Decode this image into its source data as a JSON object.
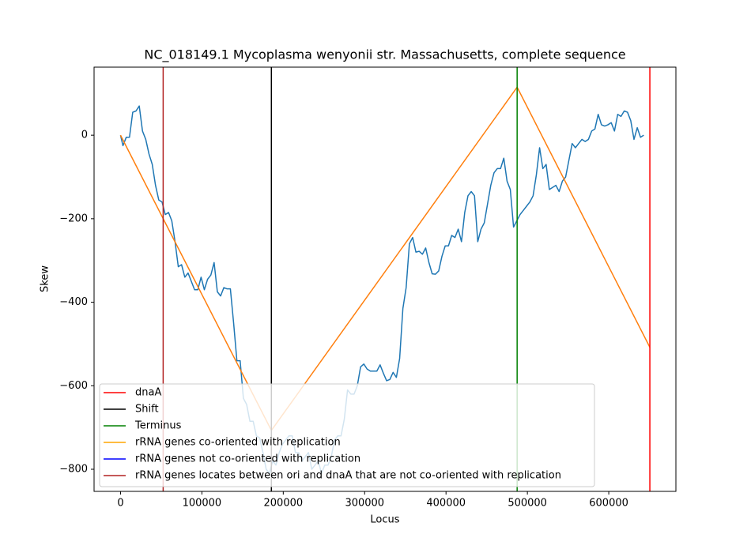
{
  "chart_data": {
    "type": "line",
    "title": "NC_018149.1 Mycoplasma wenyonii str. Massachusetts, complete sequence",
    "x_label": "Locus",
    "y_label": "Skew",
    "xlim": [
      -32500,
      682500
    ],
    "ylim": [
      -853,
      163
    ],
    "xticks": [
      0,
      100000,
      200000,
      300000,
      400000,
      500000,
      600000
    ],
    "yticks": [
      {
        "value": -800,
        "label": "−800"
      },
      {
        "value": -600,
        "label": "−600"
      },
      {
        "value": -400,
        "label": "−400"
      },
      {
        "value": -200,
        "label": "−200"
      },
      0
    ],
    "legend_position": "lower left",
    "series": [
      {
        "color": "#1f77b4",
        "x": [
          0,
          3000,
          7000,
          11000,
          15000,
          19000,
          23000,
          27000,
          31000,
          35000,
          39000,
          43000,
          47000,
          51000,
          55000,
          59000,
          63000,
          67000,
          71000,
          75000,
          79000,
          83000,
          87000,
          91000,
          95000,
          99000,
          103000,
          107000,
          111000,
          115000,
          119000,
          123000,
          127000,
          131000,
          135000,
          139000,
          143000,
          147000,
          151000,
          155000,
          159000,
          163000,
          167000,
          171000,
          175000,
          179000,
          183000,
          187000,
          191000,
          195000,
          199000,
          203000,
          207000,
          211000,
          215000,
          219000,
          223000,
          227000,
          231000,
          235000,
          239000,
          243000,
          247000,
          251000,
          255000,
          259000,
          263000,
          267000,
          271000,
          275000,
          279000,
          283000,
          287000,
          291000,
          295000,
          299000,
          303000,
          307000,
          311000,
          315000,
          319000,
          323000,
          327000,
          331000,
          335000,
          339000,
          343000,
          347000,
          351000,
          355000,
          359000,
          363000,
          367000,
          371000,
          375000,
          379000,
          383000,
          387000,
          391000,
          395000,
          399000,
          403000,
          407000,
          411000,
          415000,
          419000,
          423000,
          427000,
          431000,
          435000,
          439000,
          443000,
          447000,
          451000,
          455000,
          459000,
          463000,
          467000,
          471000,
          475000,
          479000,
          483000,
          487000,
          491000,
          495000,
          499000,
          503000,
          507000,
          511000,
          515000,
          519000,
          523000,
          527000,
          531000,
          535000,
          539000,
          543000,
          547000,
          551000,
          555000,
          559000,
          563000,
          567000,
          571000,
          575000,
          579000,
          583000,
          587000,
          591000,
          595000,
          599000,
          603000,
          607000,
          611000,
          615000,
          619000,
          623000,
          627000,
          631000,
          635000,
          639000,
          643000
        ],
        "values": [
          0,
          -25,
          -5,
          -5,
          55,
          58,
          70,
          10,
          -10,
          -45,
          -70,
          -120,
          -155,
          -160,
          -190,
          -185,
          -205,
          -255,
          -315,
          -310,
          -340,
          -330,
          -350,
          -370,
          -370,
          -340,
          -370,
          -345,
          -335,
          -305,
          -375,
          -385,
          -365,
          -368,
          -368,
          -450,
          -540,
          -540,
          -630,
          -645,
          -685,
          -685,
          -720,
          -725,
          -760,
          -800,
          -810,
          -780,
          -790,
          -760,
          -740,
          -730,
          -720,
          -720,
          -760,
          -760,
          -780,
          -770,
          -760,
          -800,
          -790,
          -780,
          -810,
          -790,
          -790,
          -770,
          -730,
          -720,
          -720,
          -680,
          -610,
          -620,
          -620,
          -600,
          -555,
          -548,
          -560,
          -565,
          -565,
          -565,
          -550,
          -570,
          -588,
          -585,
          -568,
          -580,
          -535,
          -415,
          -365,
          -260,
          -245,
          -280,
          -278,
          -285,
          -270,
          -305,
          -332,
          -333,
          -325,
          -290,
          -265,
          -265,
          -240,
          -245,
          -225,
          -255,
          -185,
          -145,
          -135,
          -145,
          -255,
          -225,
          -210,
          -165,
          -120,
          -90,
          -80,
          -80,
          -55,
          -110,
          -130,
          -220,
          -205,
          -190,
          -180,
          -170,
          -160,
          -145,
          -95,
          -30,
          -80,
          -70,
          -130,
          -125,
          -120,
          -135,
          -110,
          -100,
          -60,
          -20,
          -30,
          -20,
          -10,
          -15,
          -10,
          10,
          15,
          50,
          25,
          22,
          25,
          30,
          10,
          50,
          45,
          58,
          55,
          35,
          -10,
          18,
          -5,
          0
        ]
      },
      {
        "color": "#ff7f0e",
        "x": [
          0,
          185400,
          487400,
          650500
        ],
        "values": [
          0,
          -707,
          115,
          -508
        ]
      }
    ],
    "vlines": [
      {
        "name": "dnaA",
        "color": "#ff0000",
        "x": [
          650500
        ]
      },
      {
        "name": "Shift",
        "color": "#000000",
        "x": [
          185400
        ]
      },
      {
        "name": "Terminus",
        "color": "#008000",
        "x": [
          487400
        ]
      },
      {
        "name": "rRNA genes co-oriented with replication",
        "color": "#ffa500",
        "x": []
      },
      {
        "name": "rRNA genes not co-oriented with replication",
        "color": "#0000ff",
        "x": []
      },
      {
        "name": "rRNA genes locates between ori and dnaA that are not co-oriented with replication",
        "color": "#b22222",
        "x": [
          52400
        ]
      }
    ]
  }
}
